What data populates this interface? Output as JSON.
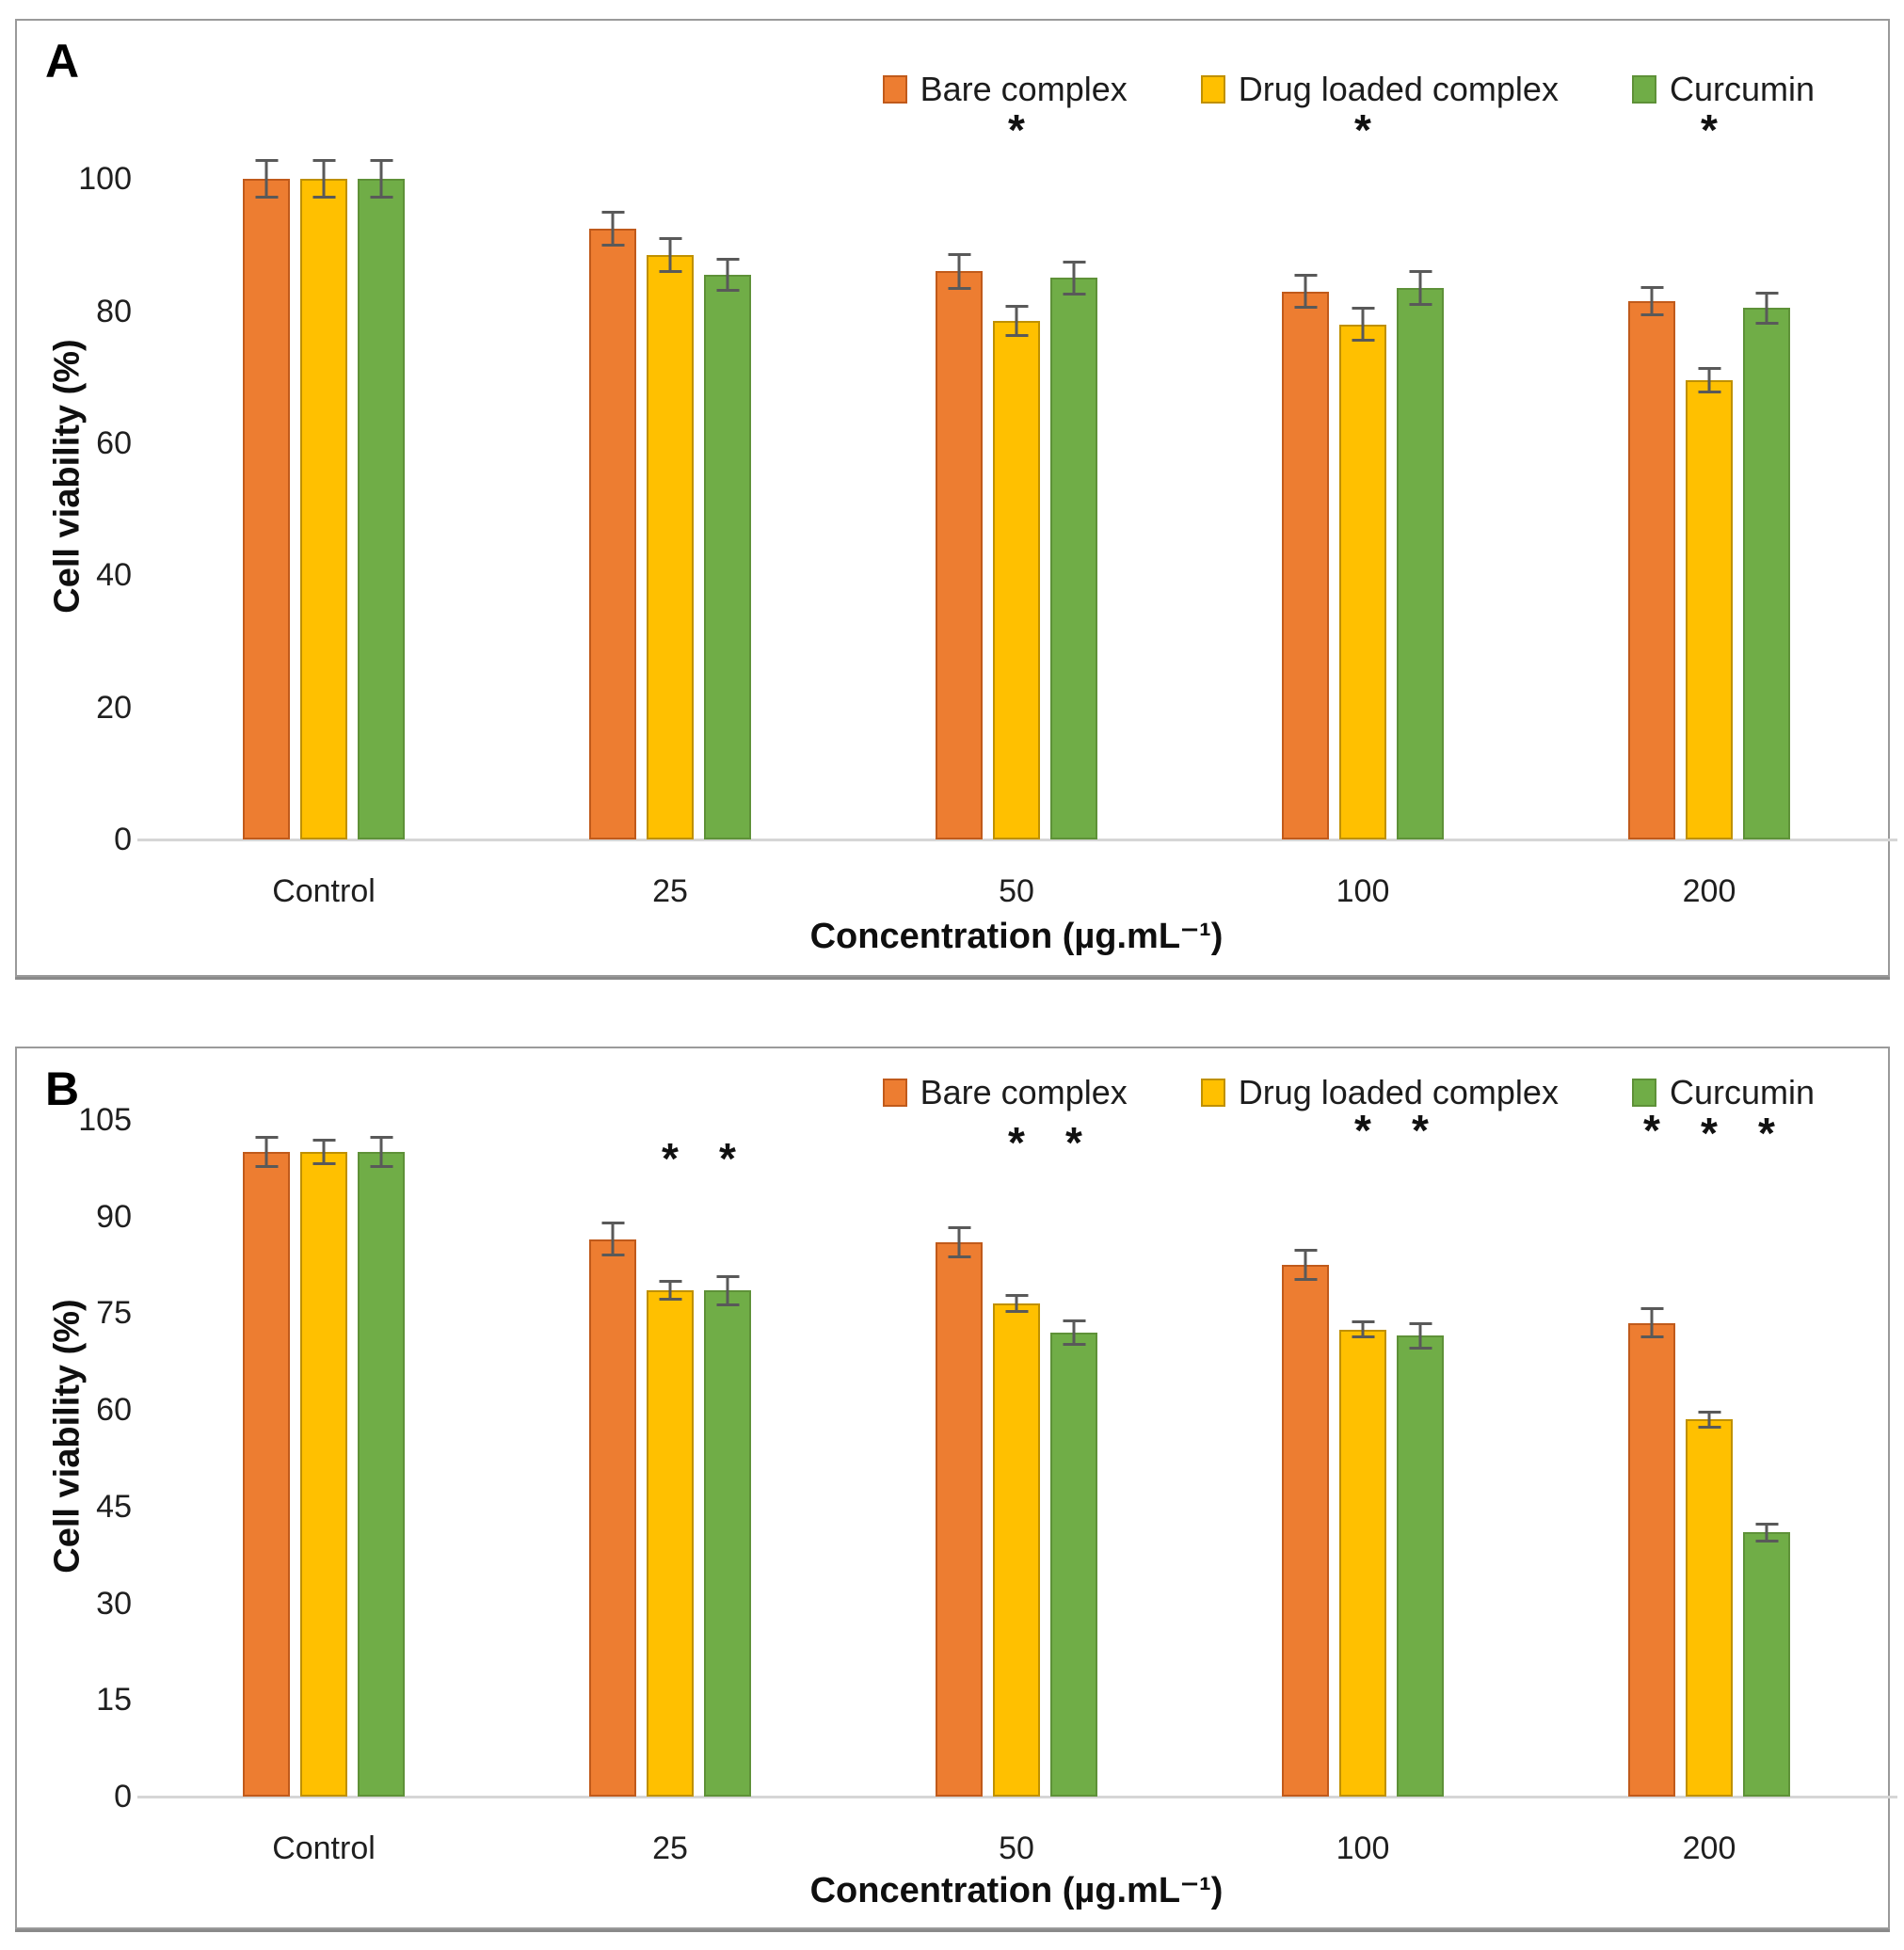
{
  "chart_data": [
    {
      "id": "A",
      "type": "bar",
      "panel_label": "A",
      "title": "",
      "xlabel": "Concentration (µg.mL⁻¹)",
      "ylabel": "Cell viability (%)",
      "categories": [
        "Control",
        "25",
        "50",
        "100",
        "200"
      ],
      "yticks": [
        0,
        20,
        40,
        60,
        80,
        100
      ],
      "ylim": [
        0,
        110
      ],
      "grid": false,
      "legend_position": "top-right",
      "error_bar_color": "#595959",
      "axis_line_color": "#d6d6d6",
      "series": [
        {
          "name": "Bare complex",
          "color": "#ED7D31",
          "border_color": "#C05A1B",
          "values": [
            100,
            92.5,
            86,
            83,
            81.5
          ],
          "errors": [
            3,
            2.7,
            2.8,
            2.6,
            2.3
          ]
        },
        {
          "name": "Drug loaded complex",
          "color": "#FFC000",
          "border_color": "#BF9000",
          "values": [
            100,
            88.5,
            78.5,
            78,
            69.5
          ],
          "errors": [
            3,
            2.7,
            2.4,
            2.6,
            2
          ]
        },
        {
          "name": "Curcumin",
          "color": "#70AD47",
          "border_color": "#5E9138",
          "values": [
            100,
            85.5,
            85,
            83.5,
            80.5
          ],
          "errors": [
            3,
            2.6,
            2.7,
            2.7,
            2.5
          ]
        }
      ],
      "significance_markers": [
        {
          "symbol": "*",
          "category_index": 2,
          "series_index": 1,
          "y": 107
        },
        {
          "symbol": "*",
          "category_index": 3,
          "series_index": 1,
          "y": 107
        },
        {
          "symbol": "*",
          "category_index": 4,
          "series_index": 1,
          "y": 107
        }
      ]
    },
    {
      "id": "B",
      "type": "bar",
      "panel_label": "B",
      "title": "",
      "xlabel": "Concentration (µg.mL⁻¹)",
      "ylabel": "Cell viability (%)",
      "categories": [
        "Control",
        "25",
        "50",
        "100",
        "200"
      ],
      "yticks": [
        0,
        15,
        30,
        45,
        60,
        75,
        90,
        105
      ],
      "ylim": [
        0,
        112
      ],
      "grid": false,
      "legend_position": "top-right",
      "error_bar_color": "#595959",
      "axis_line_color": "#d6d6d6",
      "series": [
        {
          "name": "Bare complex",
          "color": "#ED7D31",
          "border_color": "#C05A1B",
          "values": [
            100,
            86.5,
            86,
            82.5,
            73.5
          ],
          "errors": [
            2.5,
            2.7,
            2.5,
            2.5,
            2.4
          ]
        },
        {
          "name": "Drug loaded complex",
          "color": "#FFC000",
          "border_color": "#BF9000",
          "values": [
            100,
            78.5,
            76.5,
            72.5,
            58.5
          ],
          "errors": [
            2,
            1.6,
            1.5,
            1.4,
            1.4
          ]
        },
        {
          "name": "Curcumin",
          "color": "#70AD47",
          "border_color": "#5E9138",
          "values": [
            100,
            78.5,
            72,
            71.5,
            41
          ],
          "errors": [
            2.5,
            2.4,
            2.1,
            2.1,
            1.5
          ]
        }
      ],
      "significance_markers": [
        {
          "symbol": "*",
          "category_index": 1,
          "series_index": 1,
          "y": 98.5
        },
        {
          "symbol": "*",
          "category_index": 1,
          "series_index": 2,
          "y": 98.5
        },
        {
          "symbol": "*",
          "category_index": 2,
          "series_index": 1,
          "y": 101
        },
        {
          "symbol": "*",
          "category_index": 2,
          "series_index": 2,
          "y": 101
        },
        {
          "symbol": "*",
          "category_index": 3,
          "series_index": 1,
          "y": 103
        },
        {
          "symbol": "*",
          "category_index": 3,
          "series_index": 2,
          "y": 103
        },
        {
          "symbol": "*",
          "category_index": 4,
          "series_index": 0,
          "y": 103
        },
        {
          "symbol": "*",
          "category_index": 4,
          "series_index": 1,
          "y": 102.5
        },
        {
          "symbol": "*",
          "category_index": 4,
          "series_index": 2,
          "y": 102.5
        }
      ]
    }
  ]
}
